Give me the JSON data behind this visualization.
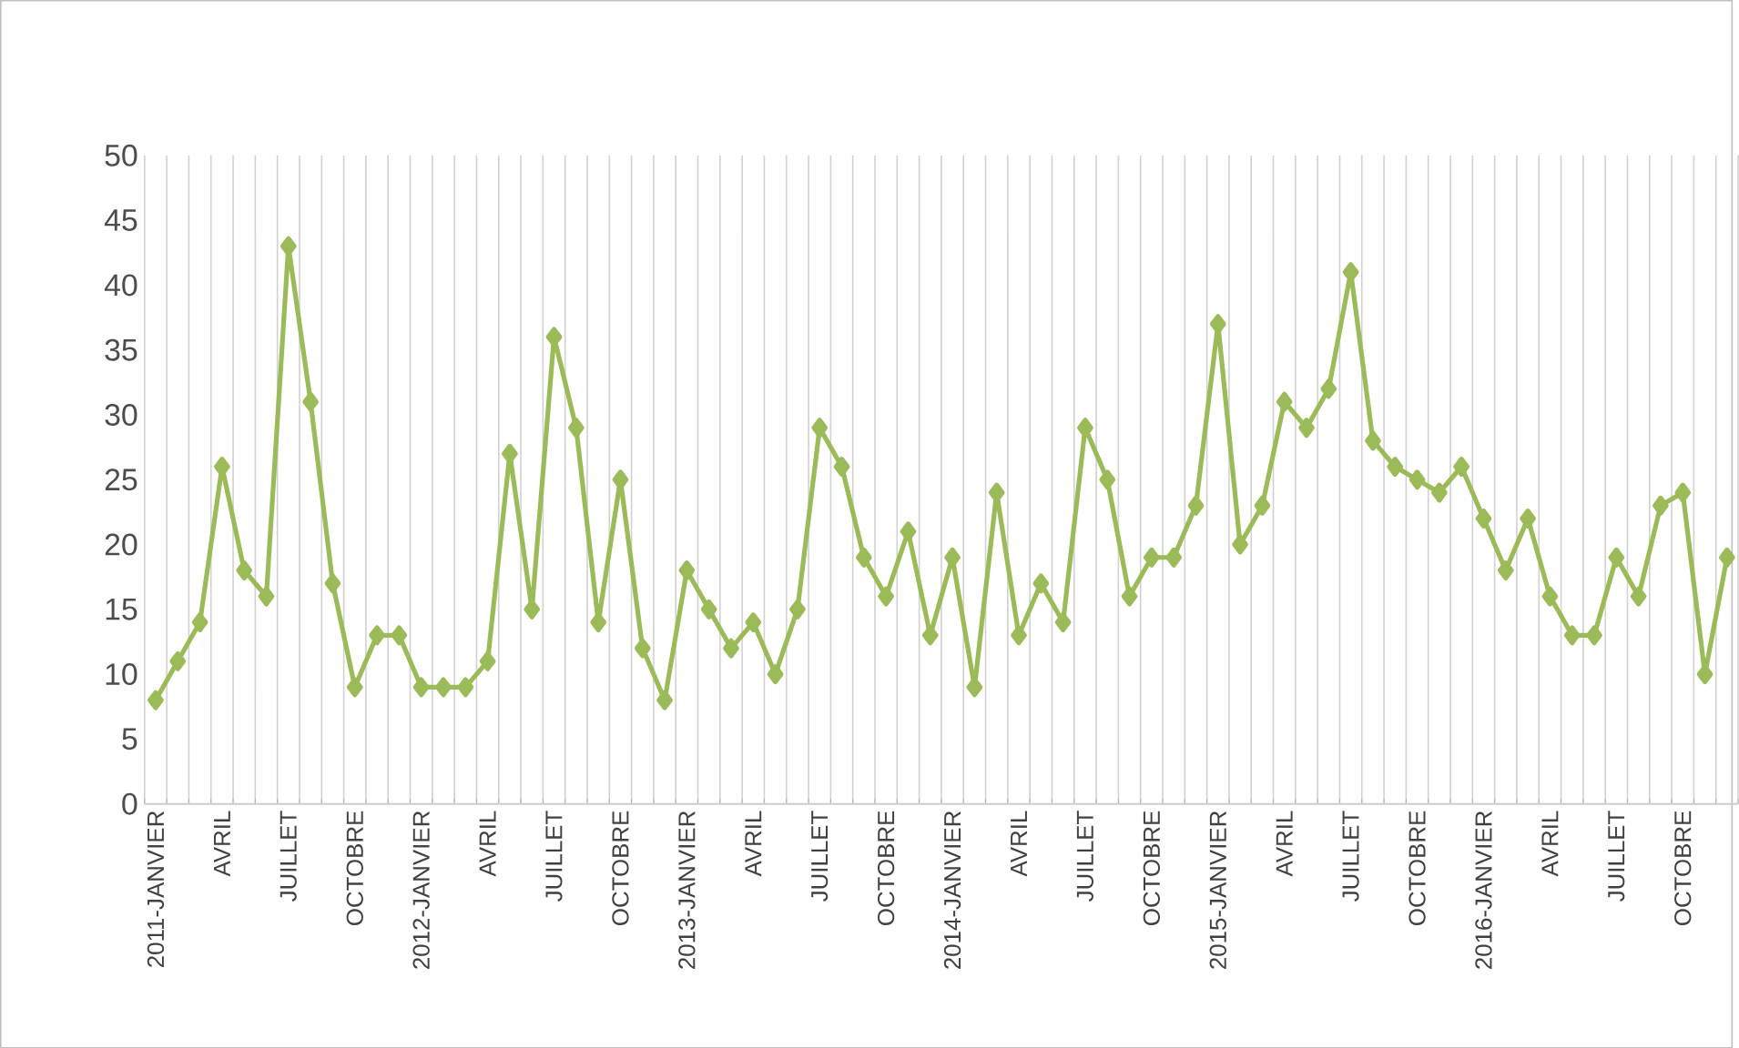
{
  "chart_data": {
    "type": "line",
    "categories": [
      "2011-JANVIER",
      null,
      null,
      "AVRIL",
      null,
      null,
      "JUILLET",
      null,
      null,
      "OCTOBRE",
      null,
      null,
      "2012-JANVIER",
      null,
      null,
      "AVRIL",
      null,
      null,
      "JUILLET",
      null,
      null,
      "OCTOBRE",
      null,
      null,
      "2013-JANVIER",
      null,
      null,
      "AVRIL",
      null,
      null,
      "JUILLET",
      null,
      null,
      "OCTOBRE",
      null,
      null,
      "2014-JANVIER",
      null,
      null,
      "AVRIL",
      null,
      null,
      "JUILLET",
      null,
      null,
      "OCTOBRE",
      null,
      null,
      "2015-JANVIER",
      null,
      null,
      "AVRIL",
      null,
      null,
      "JUILLET",
      null,
      null,
      "OCTOBRE",
      null,
      null,
      "2016-JANVIER",
      null,
      null,
      "AVRIL",
      null,
      null,
      "JUILLET",
      null,
      null,
      "OCTOBRE",
      null,
      null
    ],
    "series": [
      {
        "color": "#9bbb59",
        "values": [
          8,
          11,
          14,
          26,
          18,
          16,
          43,
          31,
          17,
          9,
          13,
          13,
          9,
          9,
          9,
          11,
          27,
          15,
          36,
          29,
          14,
          25,
          12,
          8,
          18,
          15,
          12,
          14,
          10,
          15,
          29,
          26,
          19,
          16,
          21,
          13,
          19,
          9,
          24,
          13,
          17,
          14,
          29,
          25,
          16,
          19,
          19,
          23,
          37,
          20,
          23,
          31,
          29,
          32,
          41,
          28,
          26,
          25,
          24,
          26,
          22,
          18,
          22,
          16,
          13,
          13,
          19,
          16,
          23,
          24,
          10,
          19
        ]
      }
    ],
    "ylim": [
      0,
      50
    ],
    "yticks": [
      0,
      5,
      10,
      15,
      20,
      25,
      30,
      35,
      40,
      45,
      50
    ],
    "grid": "x",
    "marker": "diamond",
    "line_style": "solid"
  }
}
